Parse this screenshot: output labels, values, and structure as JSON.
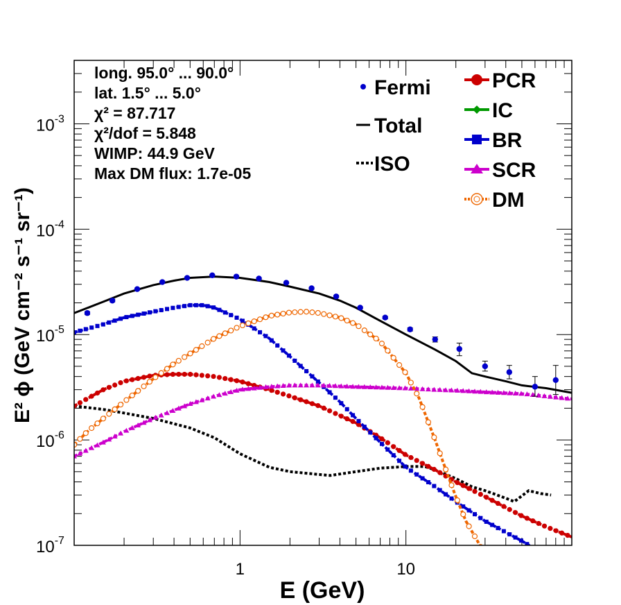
{
  "chart_data": {
    "type": "scatter",
    "xscale": "log",
    "yscale": "log",
    "xlim": [
      0.1,
      100
    ],
    "ylim": [
      1e-07,
      0.004
    ],
    "xlabel": "E (GeV)",
    "ylabel": "E² ϕ (GeV cm⁻² s⁻¹ sr⁻¹)",
    "x_tick_labels": [
      {
        "x": 1,
        "label": "1"
      },
      {
        "x": 10,
        "label": "10"
      }
    ],
    "y_tick_labels": [
      {
        "y": 1e-07,
        "base": "10",
        "exp": "-7"
      },
      {
        "y": 1e-06,
        "base": "10",
        "exp": "-6"
      },
      {
        "y": 1e-05,
        "base": "10",
        "exp": "-5"
      },
      {
        "y": 0.0001,
        "base": "10",
        "exp": "-4"
      },
      {
        "y": 0.001,
        "base": "10",
        "exp": "-3"
      }
    ],
    "info_text": [
      "long. 95.0° ... 90.0°",
      "lat. 1.5° ... 5.0°",
      "χ² = 87.717",
      "χ²/dof = 5.848",
      "WIMP: 44.9 GeV",
      "Max DM flux: 1.7e-05"
    ],
    "legend_left": [
      {
        "name": "Fermi",
        "style": "points"
      },
      {
        "name": "Total",
        "style": "solid"
      },
      {
        "name": "ISO",
        "style": "dotted"
      }
    ],
    "legend_right": [
      {
        "name": "PCR",
        "color": "#cc0000",
        "marker": "circle"
      },
      {
        "name": "IC",
        "color": "#009900",
        "marker": "diamond"
      },
      {
        "name": "BR",
        "color": "#0000cc",
        "marker": "square"
      },
      {
        "name": "SCR",
        "color": "#cc00cc",
        "marker": "triangle"
      },
      {
        "name": "DM",
        "color": "#ee6600",
        "marker": "open-circle"
      }
    ],
    "fermi": {
      "color": "#0000cc",
      "x": [
        0.12,
        0.17,
        0.24,
        0.34,
        0.48,
        0.68,
        0.95,
        1.3,
        1.9,
        2.7,
        3.8,
        5.3,
        7.5,
        10.6,
        15,
        21,
        30,
        42,
        60,
        80
      ],
      "y": [
        1.6e-05,
        2.1e-05,
        2.7e-05,
        3.15e-05,
        3.45e-05,
        3.65e-05,
        3.55e-05,
        3.4e-05,
        3.1e-05,
        2.75e-05,
        2.3e-05,
        1.8e-05,
        1.45e-05,
        1.12e-05,
        9e-06,
        7.3e-06,
        5e-06,
        4.4e-06,
        3.2e-06,
        3.7e-06
      ],
      "err_up": [
        5e-07,
        6e-07,
        6e-07,
        7e-07,
        7e-07,
        7e-07,
        7e-07,
        6e-07,
        6e-07,
        6e-07,
        5e-07,
        4e-07,
        4e-07,
        4e-07,
        5e-07,
        1e-06,
        6e-07,
        7e-07,
        8e-07,
        1.4e-06
      ],
      "err_dn": [
        5e-07,
        6e-07,
        6e-07,
        7e-07,
        7e-07,
        7e-07,
        7e-07,
        6e-07,
        6e-07,
        6e-07,
        5e-07,
        4e-07,
        4e-07,
        4e-07,
        5e-07,
        1e-06,
        5e-07,
        6e-07,
        6e-07,
        1e-06
      ]
    },
    "series": [
      {
        "name": "Total",
        "color": "#000000",
        "style": "solid",
        "x": [
          0.1,
          0.15,
          0.2,
          0.3,
          0.4,
          0.5,
          0.7,
          1,
          1.5,
          2,
          3,
          4,
          5,
          7,
          10,
          15,
          20,
          25,
          30,
          40,
          50,
          70,
          100
        ],
        "y": [
          1.6e-05,
          2.05e-05,
          2.45e-05,
          2.95e-05,
          3.25e-05,
          3.45e-05,
          3.55e-05,
          3.45e-05,
          3.15e-05,
          2.85e-05,
          2.45e-05,
          2.1e-05,
          1.8e-05,
          1.35e-05,
          1e-05,
          7.2e-06,
          5.6e-06,
          4.3e-06,
          4e-06,
          3.6e-06,
          3.3e-06,
          3.1e-06,
          2.8e-06
        ]
      },
      {
        "name": "ISO",
        "color": "#000000",
        "style": "dotted",
        "x": [
          0.1,
          0.15,
          0.2,
          0.3,
          0.5,
          0.7,
          1,
          1.5,
          2,
          3,
          3.5,
          5,
          7,
          10,
          13,
          15,
          20,
          25,
          30,
          40,
          45,
          55,
          65,
          75
        ],
        "y": [
          2.1e-06,
          1.95e-06,
          1.8e-06,
          1.6e-06,
          1.3e-06,
          1.05e-06,
          7.4e-07,
          5.5e-07,
          5e-07,
          4.7e-07,
          4.6e-07,
          5e-07,
          5.4e-07,
          5.6e-07,
          5.6e-07,
          5.2e-07,
          4.3e-07,
          3.6e-07,
          3.3e-07,
          2.8e-07,
          2.6e-07,
          3.3e-07,
          3.1e-07,
          3e-07
        ]
      },
      {
        "name": "PCR",
        "color": "#cc0000",
        "style": "dashed-markers",
        "x": [
          0.1,
          0.15,
          0.2,
          0.3,
          0.4,
          0.5,
          0.7,
          1,
          1.5,
          2,
          3,
          5,
          7,
          10,
          15,
          20,
          30,
          50,
          70,
          100
        ],
        "y": [
          2.1e-06,
          3e-06,
          3.6e-06,
          4.1e-06,
          4.2e-06,
          4.2e-06,
          4e-06,
          3.6e-06,
          3e-06,
          2.6e-06,
          2.1e-06,
          1.45e-06,
          1.05e-06,
          7.2e-07,
          5.2e-07,
          4e-07,
          2.9e-07,
          1.9e-07,
          1.5e-07,
          1.2e-07
        ]
      },
      {
        "name": "BR",
        "color": "#0000cc",
        "style": "dashed-markers",
        "x": [
          0.1,
          0.15,
          0.2,
          0.3,
          0.4,
          0.5,
          0.6,
          0.7,
          1,
          1.5,
          2,
          3,
          4,
          5,
          7,
          10,
          15,
          20,
          30,
          50,
          70
        ],
        "y": [
          1.05e-05,
          1.25e-05,
          1.45e-05,
          1.65e-05,
          1.8e-05,
          1.9e-05,
          1.9e-05,
          1.8e-05,
          1.4e-05,
          9.2e-06,
          6.2e-06,
          3.5e-06,
          2.3e-06,
          1.6e-06,
          9.5e-07,
          5.5e-07,
          3.6e-07,
          2.6e-07,
          1.7e-07,
          1.1e-07,
          8e-08
        ]
      },
      {
        "name": "SCR",
        "color": "#cc00cc",
        "style": "dashed-markers",
        "x": [
          0.1,
          0.15,
          0.2,
          0.3,
          0.5,
          0.7,
          1,
          1.5,
          2,
          3,
          5,
          7,
          10,
          15,
          20,
          30,
          50,
          70,
          100
        ],
        "y": [
          7e-07,
          9.5e-07,
          1.2e-06,
          1.6e-06,
          2.2e-06,
          2.6e-06,
          3e-06,
          3.2e-06,
          3.3e-06,
          3.3e-06,
          3.2e-06,
          3.15e-06,
          3.1e-06,
          3e-06,
          2.95e-06,
          2.85e-06,
          2.75e-06,
          2.6e-06,
          2.45e-06
        ]
      },
      {
        "name": "DM",
        "color": "#ee6600",
        "style": "dashed-markers",
        "x": [
          0.1,
          0.12,
          0.15,
          0.2,
          0.3,
          0.4,
          0.5,
          0.7,
          1,
          1.5,
          2,
          2.5,
          3,
          4,
          5,
          7,
          10,
          12,
          15,
          18,
          20,
          23,
          27,
          30
        ],
        "y": [
          9e-07,
          1.2e-06,
          1.6e-06,
          2.3e-06,
          3.8e-06,
          5.3e-06,
          6.6e-06,
          9.2e-06,
          1.2e-05,
          1.5e-05,
          1.62e-05,
          1.65e-05,
          1.6e-05,
          1.45e-05,
          1.25e-05,
          8.6e-06,
          4.3e-06,
          2.5e-06,
          1e-06,
          4.5e-07,
          2.9e-07,
          1.7e-07,
          1.1e-07,
          8e-08
        ]
      }
    ]
  }
}
